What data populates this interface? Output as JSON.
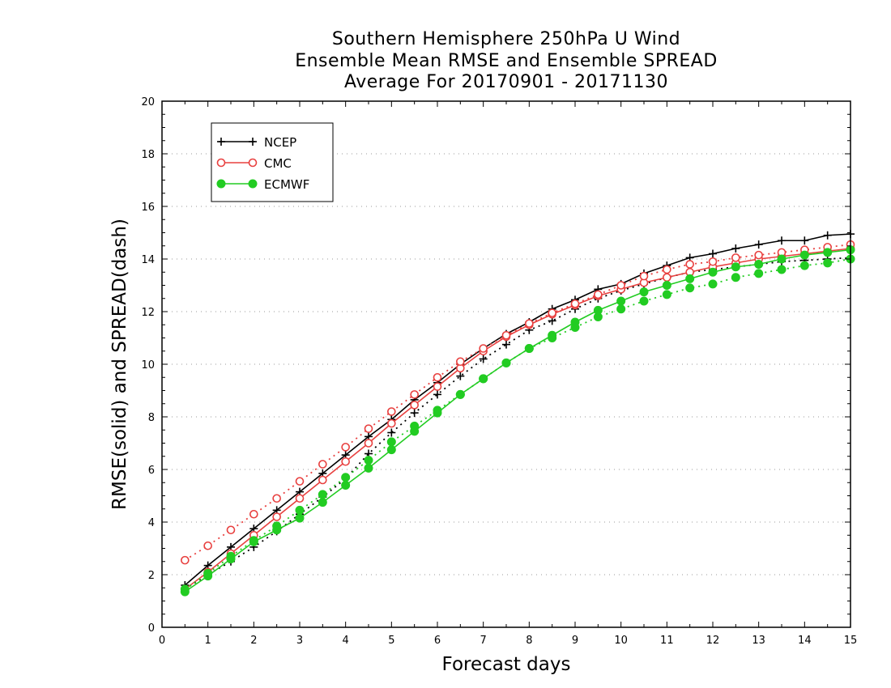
{
  "titles": [
    "Southern Hemisphere 250hPa U Wind",
    "Ensemble Mean RMSE and Ensemble SPREAD",
    "Average For 20170901 - 20171130"
  ],
  "chart_data": {
    "type": "line",
    "title": "Southern Hemisphere 250hPa U Wind / Ensemble Mean RMSE and Ensemble SPREAD / Average For 20170901 - 20171130",
    "xlabel": "Forecast days",
    "ylabel": "RMSE(solid) and SPREAD(dash)",
    "xlim": [
      0,
      15
    ],
    "ylim": [
      0,
      20
    ],
    "xticks": [
      0,
      1,
      2,
      3,
      4,
      5,
      6,
      7,
      8,
      9,
      10,
      11,
      12,
      13,
      14,
      15
    ],
    "yticks": [
      0,
      2,
      4,
      6,
      8,
      10,
      12,
      14,
      16,
      18,
      20
    ],
    "grid": "horizontal dotted",
    "legend_position": "top-left",
    "x": [
      0.5,
      1,
      1.5,
      2,
      2.5,
      3,
      3.5,
      4,
      4.5,
      5,
      5.5,
      6,
      6.5,
      7,
      7.5,
      8,
      8.5,
      9,
      9.5,
      10,
      10.5,
      11,
      11.5,
      12,
      12.5,
      13,
      13.5,
      14,
      14.5,
      15
    ],
    "series": [
      {
        "name": "NCEP",
        "style": "solid",
        "marker": "plus",
        "color": "#000000",
        "values": [
          1.6,
          2.35,
          3.05,
          3.75,
          4.45,
          5.15,
          5.85,
          6.55,
          7.25,
          7.9,
          8.65,
          9.3,
          10.0,
          10.6,
          11.15,
          11.6,
          12.1,
          12.45,
          12.85,
          13.05,
          13.45,
          13.75,
          14.05,
          14.2,
          14.4,
          14.55,
          14.7,
          14.7,
          14.9,
          14.95
        ]
      },
      {
        "name": "NCEP",
        "style": "dash",
        "marker": "plus",
        "color": "#000000",
        "values": [
          1.45,
          2.0,
          2.5,
          3.05,
          3.65,
          4.3,
          4.95,
          5.65,
          6.6,
          7.4,
          8.15,
          8.85,
          9.55,
          10.2,
          10.75,
          11.3,
          11.65,
          12.1,
          12.5,
          12.8,
          13.05,
          13.3,
          13.5,
          13.6,
          13.7,
          13.8,
          13.9,
          13.95,
          14.0,
          14.05
        ]
      },
      {
        "name": "CMC",
        "style": "solid",
        "marker": "open-circle",
        "color": "#e8403f",
        "values": [
          1.45,
          2.1,
          2.8,
          3.5,
          4.2,
          4.9,
          5.6,
          6.3,
          7.0,
          7.75,
          8.45,
          9.15,
          9.85,
          10.5,
          11.05,
          11.5,
          11.9,
          12.25,
          12.6,
          12.85,
          13.1,
          13.3,
          13.5,
          13.7,
          13.85,
          14.0,
          14.1,
          14.2,
          14.3,
          14.4
        ]
      },
      {
        "name": "CMC",
        "style": "dash",
        "marker": "open-circle",
        "color": "#e8403f",
        "values": [
          2.55,
          3.1,
          3.7,
          4.3,
          4.9,
          5.55,
          6.2,
          6.85,
          7.55,
          8.2,
          8.85,
          9.5,
          10.1,
          10.6,
          11.1,
          11.55,
          11.95,
          12.3,
          12.65,
          13.0,
          13.35,
          13.6,
          13.8,
          13.9,
          14.05,
          14.15,
          14.25,
          14.35,
          14.45,
          14.55
        ]
      },
      {
        "name": "ECMWF",
        "style": "solid",
        "marker": "filled-circle",
        "color": "#22cc22",
        "values": [
          1.35,
          1.95,
          2.6,
          3.25,
          3.7,
          4.15,
          4.75,
          5.4,
          6.05,
          6.75,
          7.45,
          8.15,
          8.85,
          9.45,
          10.05,
          10.6,
          11.1,
          11.6,
          12.05,
          12.4,
          12.75,
          13.0,
          13.25,
          13.5,
          13.7,
          13.8,
          14.0,
          14.15,
          14.25,
          14.35
        ]
      },
      {
        "name": "ECMWF",
        "style": "dash",
        "marker": "filled-circle",
        "color": "#22cc22",
        "values": [
          1.45,
          2.05,
          2.7,
          3.3,
          3.85,
          4.45,
          5.05,
          5.7,
          6.35,
          7.05,
          7.65,
          8.25,
          8.85,
          9.45,
          10.05,
          10.6,
          11.0,
          11.4,
          11.8,
          12.1,
          12.4,
          12.65,
          12.9,
          13.05,
          13.3,
          13.45,
          13.6,
          13.75,
          13.85,
          14.0
        ]
      }
    ]
  },
  "legend": [
    {
      "label": "NCEP",
      "color": "#000000",
      "marker": "plus"
    },
    {
      "label": "CMC",
      "color": "#e8403f",
      "marker": "open-circle"
    },
    {
      "label": "ECMWF",
      "color": "#22cc22",
      "marker": "filled-circle"
    }
  ]
}
